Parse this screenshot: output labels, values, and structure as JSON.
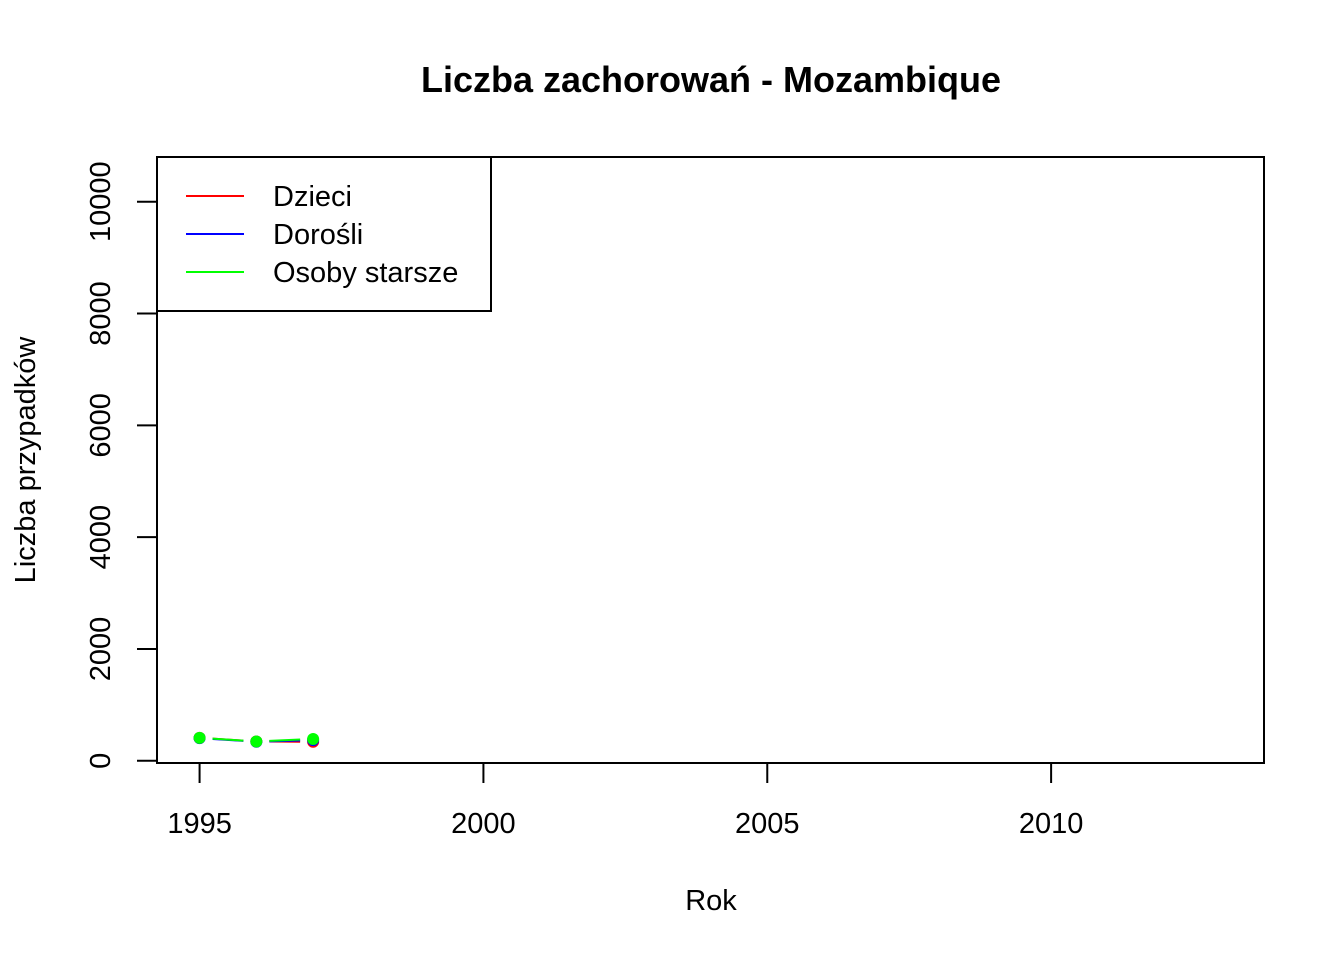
{
  "chart_data": {
    "type": "line",
    "title": "Liczba zachorowań -  Mozambique",
    "xlabel": "Rok",
    "ylabel": "Liczba przypadków",
    "xlim": [
      1994.25,
      2013.75
    ],
    "ylim": [
      -40,
      10800
    ],
    "xticks": [
      "1995",
      "2000",
      "2005",
      "2010"
    ],
    "yticks": [
      "0",
      "2000",
      "4000",
      "6000",
      "8000",
      "10000"
    ],
    "x": [
      1995,
      1996,
      1997
    ],
    "series": [
      {
        "name": "Dzieci",
        "color": "#ff0000",
        "values": [
          410,
          345,
          340
        ]
      },
      {
        "name": "Dorośli",
        "color": "#0000ff",
        "values": [
          405,
          340,
          370
        ]
      },
      {
        "name": "Osoby starsze",
        "color": "#00ff00",
        "values": [
          410,
          345,
          390
        ]
      }
    ],
    "legend_position": "top-left",
    "grid": false
  }
}
